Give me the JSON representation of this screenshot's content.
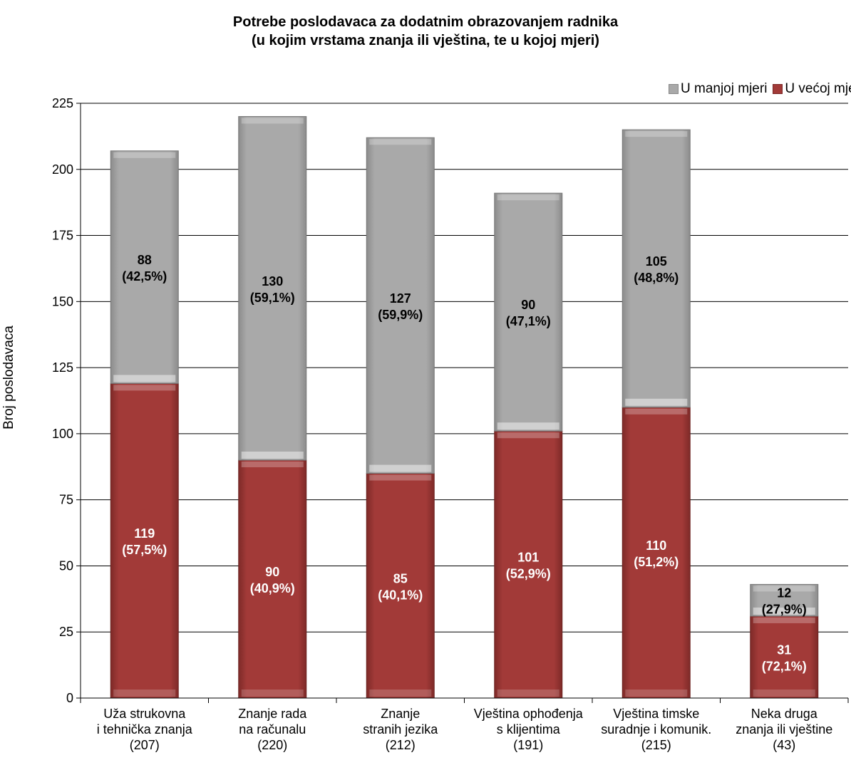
{
  "chart_data": {
    "type": "bar",
    "stacked": true,
    "title": [
      "Potrebe poslodavaca za dodatnim obrazovanjem radnika",
      "(u kojim vrstama znanja ili vještina, te u kojoj mjeri)"
    ],
    "ylabel": "Broj poslodavaca",
    "xlabel": "",
    "ylim": [
      0,
      225
    ],
    "yticks": [
      0,
      25,
      50,
      75,
      100,
      125,
      150,
      175,
      200,
      225
    ],
    "grid": true,
    "legend_position": "top-right",
    "categories": [
      [
        "Uža strukovna",
        "i tehnička znanja",
        "(207)"
      ],
      [
        "Znanje rada",
        "na računalu",
        "(220)"
      ],
      [
        "Znanje",
        "stranih jezika",
        "(212)"
      ],
      [
        "Vještina ophođenja",
        "s klijentima",
        "(191)"
      ],
      [
        "Vještina timske",
        "suradnje i komunik.",
        "(215)"
      ],
      [
        "Neka druga",
        "znanja ili vještine",
        "(43)"
      ]
    ],
    "series": [
      {
        "name": "U većoj mjeri",
        "color": "#a23a38",
        "values": [
          119,
          90,
          85,
          101,
          110,
          31
        ],
        "labels": [
          [
            "119",
            "(57,5%)"
          ],
          [
            "90",
            "(40,9%)"
          ],
          [
            "85",
            "(40,1%)"
          ],
          [
            "101",
            "(52,9%)"
          ],
          [
            "110",
            "(51,2%)"
          ],
          [
            "31",
            "(72,1%)"
          ]
        ],
        "label_color": "#ffffff"
      },
      {
        "name": "U manjoj mjeri",
        "color": "#a9a9a9",
        "values": [
          88,
          130,
          127,
          90,
          105,
          12
        ],
        "labels": [
          [
            "88",
            "(42,5%)"
          ],
          [
            "130",
            "(59,1%)"
          ],
          [
            "127",
            "(59,9%)"
          ],
          [
            "90",
            "(47,1%)"
          ],
          [
            "105",
            "(48,8%)"
          ],
          [
            "12",
            "(27,9%)"
          ]
        ],
        "label_color": "#000000"
      }
    ]
  },
  "legend": {
    "manja": "U manjoj mjeri",
    "veca": "U većoj mjeri"
  }
}
